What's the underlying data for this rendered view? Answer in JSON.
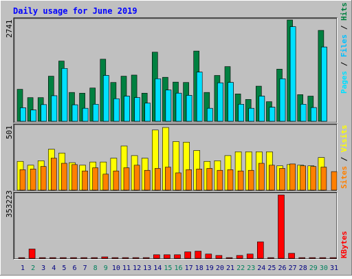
{
  "title": "Daily usage for June 2019",
  "colors": {
    "background": "#C0C0C0",
    "title": "#0000FF",
    "hits": "#008040",
    "files": "#00C0FF",
    "pages": "#00E0FF",
    "visits": "#FFFF00",
    "sites": "#FF8000",
    "kbytes": "#FF0000",
    "weekend_day_label": "#00805C",
    "weekday_day_label": "#000080"
  },
  "chart_data": [
    {
      "type": "bar",
      "name": "hits-files-pages",
      "categories": [
        "1",
        "2",
        "3",
        "4",
        "5",
        "6",
        "7",
        "8",
        "9",
        "10",
        "11",
        "12",
        "13",
        "14",
        "15",
        "16",
        "17",
        "18",
        "19",
        "20",
        "21",
        "22",
        "23",
        "24",
        "25",
        "26",
        "27",
        "28",
        "29",
        "30",
        "31"
      ],
      "weekend_days": [
        "2",
        "8",
        "9",
        "15",
        "16",
        "22",
        "23",
        "29",
        "30"
      ],
      "y_tick_label": "2741",
      "ymax": 2741,
      "right_label": [
        "Pages",
        " / ",
        "Files",
        " / ",
        "Hits"
      ],
      "series": [
        {
          "name": "Hits",
          "color": "#008040",
          "values": [
            865,
            640,
            640,
            1220,
            1630,
            780,
            760,
            900,
            1680,
            1050,
            1220,
            1250,
            760,
            1870,
            1190,
            1060,
            1050,
            1900,
            780,
            1240,
            1480,
            740,
            590,
            950,
            530,
            1410,
            2741,
            720,
            680,
            2460,
            0
          ]
        },
        {
          "name": "Files",
          "color": "#00C0FF",
          "values": [
            365,
            305,
            450,
            690,
            1430,
            445,
            350,
            460,
            1240,
            610,
            680,
            640,
            490,
            1150,
            845,
            760,
            700,
            1330,
            350,
            1040,
            1050,
            460,
            350,
            680,
            380,
            1150,
            2560,
            460,
            370,
            2010,
            0
          ]
        },
        {
          "name": "Pages",
          "color": "#00E0FF",
          "values": [
            365,
            305,
            450,
            690,
            1430,
            445,
            350,
            460,
            1240,
            610,
            680,
            640,
            490,
            1150,
            845,
            760,
            700,
            1330,
            350,
            1040,
            1050,
            460,
            350,
            680,
            380,
            1150,
            2560,
            460,
            370,
            2010,
            0
          ]
        }
      ]
    },
    {
      "type": "bar",
      "name": "visits-sites",
      "categories": [
        "1",
        "2",
        "3",
        "4",
        "5",
        "6",
        "7",
        "8",
        "9",
        "10",
        "11",
        "12",
        "13",
        "14",
        "15",
        "16",
        "17",
        "18",
        "19",
        "20",
        "21",
        "22",
        "23",
        "24",
        "25",
        "26",
        "27",
        "28",
        "29",
        "30",
        "31"
      ],
      "y_tick_label": "501",
      "ymax": 501,
      "right_label": [
        "Sites",
        " / ",
        "Visits"
      ],
      "series": [
        {
          "name": "Visits",
          "color": "#FFFF00",
          "values": [
            225,
            195,
            230,
            320,
            290,
            215,
            195,
            220,
            220,
            250,
            345,
            270,
            250,
            470,
            490,
            380,
            375,
            310,
            225,
            230,
            270,
            300,
            300,
            300,
            300,
            190,
            200,
            195,
            190,
            255,
            0
          ]
        },
        {
          "name": "Sites",
          "color": "#FF8000",
          "values": [
            160,
            165,
            185,
            250,
            210,
            200,
            150,
            175,
            125,
            150,
            175,
            195,
            155,
            170,
            180,
            135,
            160,
            165,
            170,
            155,
            160,
            150,
            155,
            210,
            195,
            170,
            205,
            190,
            185,
            180,
            145
          ]
        }
      ]
    },
    {
      "type": "bar",
      "name": "kbytes",
      "categories": [
        "1",
        "2",
        "3",
        "4",
        "5",
        "6",
        "7",
        "8",
        "9",
        "10",
        "11",
        "12",
        "13",
        "14",
        "15",
        "16",
        "17",
        "18",
        "19",
        "20",
        "21",
        "22",
        "23",
        "24",
        "25",
        "26",
        "27",
        "28",
        "29",
        "30",
        "31"
      ],
      "y_tick_label": "353223",
      "ymax": 353223,
      "right_label": [
        "KBytes"
      ],
      "series": [
        {
          "name": "KBytes",
          "color": "#FF0000",
          "values": [
            4000,
            52000,
            4000,
            4000,
            4000,
            4000,
            4000,
            4000,
            8000,
            4000,
            4000,
            4000,
            4000,
            20000,
            20000,
            20000,
            36000,
            40000,
            24000,
            16000,
            4000,
            16000,
            24000,
            92000,
            4000,
            353223,
            28000,
            4000,
            4000,
            4000,
            4000
          ]
        }
      ]
    }
  ]
}
